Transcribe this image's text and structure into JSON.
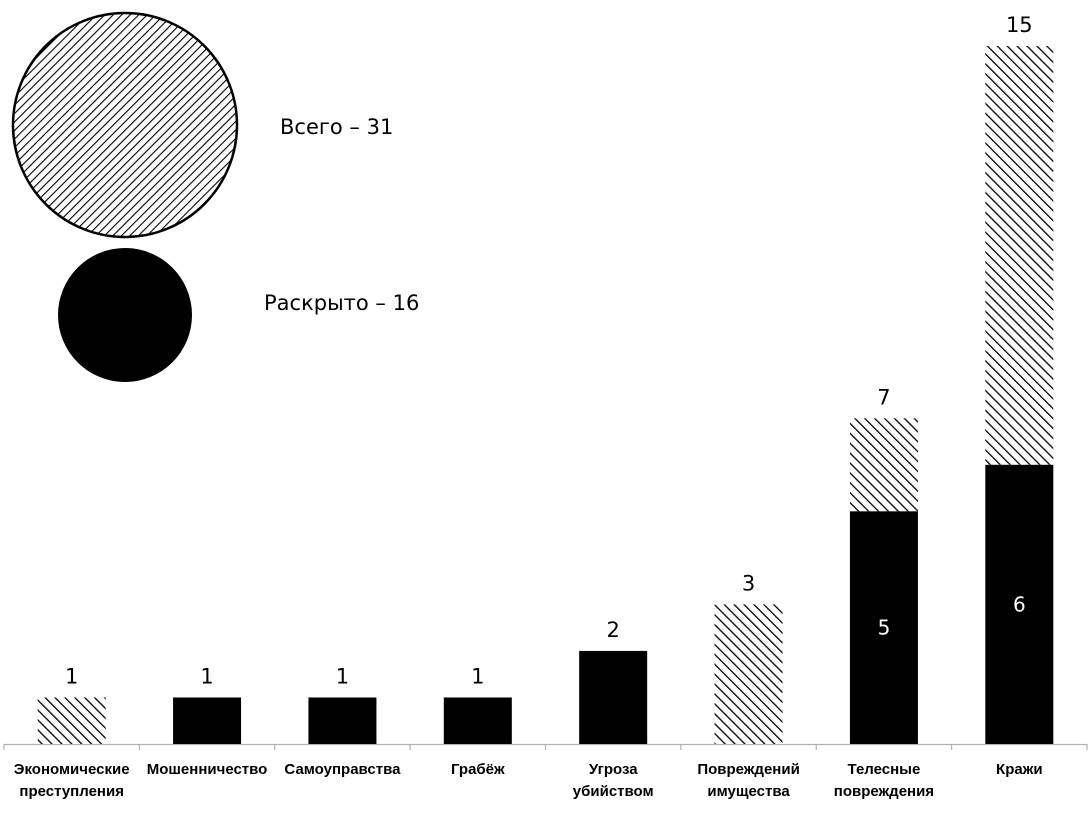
{
  "chart_data": {
    "type": "bar",
    "stacked": true,
    "legend": [
      {
        "name": "Всего – 31",
        "pattern": "hatched"
      },
      {
        "name": "Раскрыто – 16",
        "pattern": "solid"
      }
    ],
    "categories": [
      [
        "Экономические",
        "преступления"
      ],
      [
        "Мошенничество"
      ],
      [
        "Самоуправства"
      ],
      [
        "Грабёж"
      ],
      [
        "Угроза",
        "убийством"
      ],
      [
        "Повреждений",
        "имущества"
      ],
      [
        "Телесные",
        "повреждения"
      ],
      [
        "Кражи"
      ]
    ],
    "totals": [
      1,
      1,
      1,
      1,
      2,
      3,
      7,
      15
    ],
    "solved": [
      0,
      1,
      1,
      1,
      2,
      0,
      5,
      6
    ],
    "total_labels": [
      "1",
      "1",
      "1",
      "1",
      "2",
      "3",
      "7",
      "15"
    ],
    "solved_labels": [
      "",
      "",
      "",
      "",
      "",
      "",
      "5",
      "6"
    ],
    "ylim": [
      0,
      15
    ],
    "grid": false,
    "colors": {
      "solid": "#000000",
      "hatch": "#000000",
      "background": "#ffffff"
    }
  }
}
